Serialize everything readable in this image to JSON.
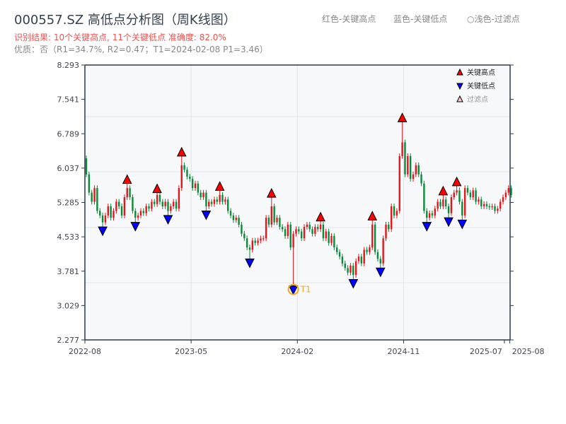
{
  "header": {
    "title": "000557.SZ 高低点分析图（周K线图）",
    "result": "识别结果: 10个关键高点, 11个关键低点  准确度: 82.0%",
    "quality": "优质：否（R1=34.7%, R2=0.47；T1=2024-02-08 P1=3.46）",
    "legend_red": "红色-关键高点",
    "legend_blue": "蓝色-关键低点",
    "legend_light": "○浅色-过滤点"
  },
  "chart_data": {
    "type": "candlestick",
    "title": "000557.SZ 高低点分析图（周K线图）",
    "ylim": [
      2.277,
      8.293
    ],
    "yticks": [
      "2.277",
      "3.029",
      "3.781",
      "4.533",
      "5.285",
      "6.037",
      "6.789",
      "7.541",
      "8.293"
    ],
    "xticks": [
      {
        "label": "2022-08",
        "week": 0
      },
      {
        "label": "2023-05",
        "week": 39
      },
      {
        "label": "2024-02",
        "week": 78
      },
      {
        "label": "2024-11",
        "week": 117
      },
      {
        "label": "2025-07",
        "week": 154
      },
      {
        "label": "2025-08",
        "week": 156
      }
    ],
    "legend": {
      "placement": "top-right",
      "items": [
        {
          "label": "关键高点",
          "color": "#ff0000",
          "marker": "triangle-up"
        },
        {
          "label": "关键低点",
          "color": "#0000ff",
          "marker": "triangle-down"
        },
        {
          "label": "过滤点",
          "color": "#ffcccc",
          "marker": "triangle-up-light"
        }
      ]
    },
    "first_open": 6.25,
    "closes": [
      5.9,
      5.5,
      5.3,
      5.6,
      5.1,
      5.0,
      4.85,
      5.0,
      5.2,
      4.95,
      5.1,
      5.3,
      5.2,
      5.0,
      5.4,
      5.6,
      5.4,
      5.1,
      4.95,
      5.0,
      5.1,
      5.05,
      5.2,
      5.15,
      5.3,
      5.25,
      5.45,
      5.3,
      5.2,
      5.3,
      5.1,
      5.2,
      5.3,
      5.15,
      5.6,
      6.1,
      6.0,
      5.85,
      5.8,
      5.6,
      5.7,
      5.5,
      5.4,
      5.5,
      5.2,
      5.3,
      5.25,
      5.35,
      5.3,
      5.45,
      5.3,
      5.35,
      5.1,
      5.0,
      4.9,
      4.95,
      4.8,
      4.6,
      4.5,
      4.3,
      4.25,
      4.45,
      4.4,
      4.45,
      4.5,
      4.5,
      4.95,
      4.8,
      5.2,
      4.85,
      4.95,
      4.75,
      4.7,
      4.55,
      4.8,
      4.3,
      4.6,
      4.7,
      4.65,
      4.5,
      4.75,
      4.8,
      4.7,
      4.6,
      4.75,
      4.7,
      4.8,
      4.5,
      4.65,
      4.4,
      4.55,
      4.3,
      4.2,
      4.1,
      3.95,
      3.85,
      3.75,
      3.9,
      3.7,
      4.0,
      4.1,
      3.95,
      4.25,
      4.2,
      4.3,
      4.8,
      4.2,
      4.05,
      3.95,
      4.5,
      4.8,
      4.7,
      5.2,
      5.0,
      5.1,
      6.3,
      6.6,
      5.9,
      6.3,
      5.8,
      5.9,
      6.1,
      5.9,
      5.7,
      5.1,
      4.95,
      5.05,
      5.0,
      5.15,
      5.3,
      5.2,
      5.35,
      5.2,
      5.05,
      5.4,
      5.5,
      5.55,
      5.3,
      5.0,
      5.6,
      5.5,
      5.4,
      5.55,
      5.3,
      5.35,
      5.2,
      5.25,
      5.2,
      5.18,
      5.2,
      5.1,
      5.15,
      5.3,
      5.4,
      5.5,
      5.6,
      5.45
    ],
    "key_highs": [
      {
        "week": 15,
        "price": 5.7
      },
      {
        "week": 26,
        "price": 5.5
      },
      {
        "week": 35,
        "price": 6.3
      },
      {
        "week": 49,
        "price": 5.55
      },
      {
        "week": 68,
        "price": 5.4
      },
      {
        "week": 86,
        "price": 4.88
      },
      {
        "week": 105,
        "price": 4.9
      },
      {
        "week": 116,
        "price": 7.05
      },
      {
        "week": 131,
        "price": 5.45
      },
      {
        "week": 136,
        "price": 5.65
      }
    ],
    "key_lows": [
      {
        "week": 6,
        "price": 4.75
      },
      {
        "week": 18,
        "price": 4.85
      },
      {
        "week": 30,
        "price": 5.0
      },
      {
        "week": 44,
        "price": 5.1
      },
      {
        "week": 60,
        "price": 4.05
      },
      {
        "week": 76,
        "price": 3.46
      },
      {
        "week": 98,
        "price": 3.6
      },
      {
        "week": 108,
        "price": 3.85
      },
      {
        "week": 125,
        "price": 4.85
      },
      {
        "week": 133,
        "price": 4.95
      },
      {
        "week": 138,
        "price": 4.9
      }
    ],
    "annotation": {
      "label": "T1",
      "week": 76,
      "price": 3.46,
      "color": "#f5a623"
    },
    "colors": {
      "up": "#e3161b",
      "down": "#0b8a3a",
      "plot_bg": "#f6f8fa"
    }
  }
}
